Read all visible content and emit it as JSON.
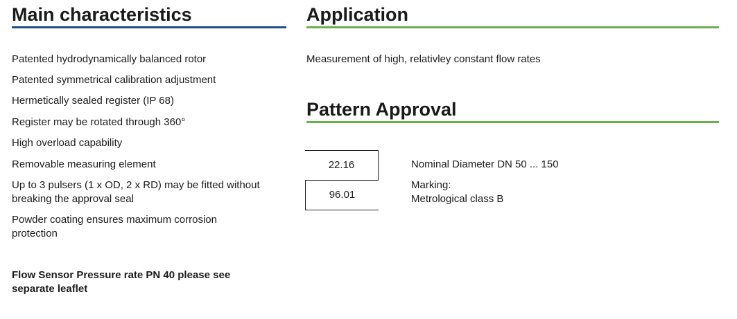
{
  "main": {
    "title": "Main characteristics",
    "items": [
      "Patented hydrodynamically balanced rotor",
      "Patented symmetrical calibration adjustment",
      "Hermetically sealed register (IP 68)",
      "Register may be rotated through 360°",
      "High overload capability",
      "Removable measuring element",
      "Up to 3 pulsers (1 x OD, 2 x RD) may be fitted without breaking the approval seal",
      "Powder coating ensures maximum corrosion protection"
    ],
    "note": "Flow Sensor Pressure rate PN 40 please see separate leaflet"
  },
  "application": {
    "title": "Application",
    "text": "Measurement of high, relativley constant flow rates"
  },
  "approval": {
    "title": "Pattern Approval",
    "rows": [
      {
        "code": "22.16",
        "desc": "Nominal Diameter DN 50 ... 150"
      },
      {
        "code": "96.01",
        "desc": "Marking:\nMetrological class B"
      }
    ]
  },
  "colors": {
    "blue_rule": "#1f4e85",
    "green_rule": "#6ab04c"
  }
}
